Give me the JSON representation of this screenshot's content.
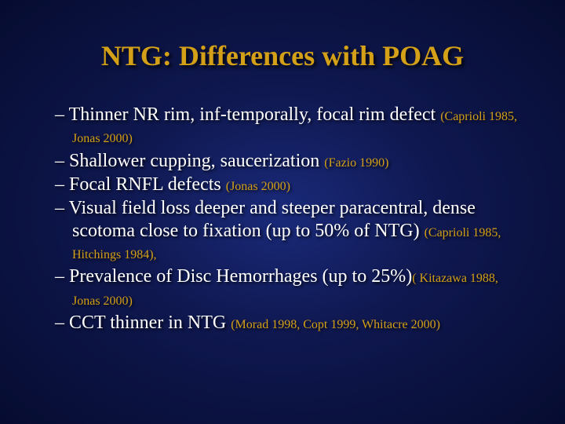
{
  "colors": {
    "title_color": "#d4a017",
    "text_color": "#ffffff",
    "cite_color": "#d4a017",
    "bg_inner": "#1a2a7a",
    "bg_mid": "#0f1850",
    "bg_outer": "#060c30"
  },
  "typography": {
    "title_fontsize": 36,
    "body_fontsize": 24,
    "cite_fontsize": 16,
    "font_family": "Times New Roman"
  },
  "title": "NTG: Differences with POAG",
  "bullets": [
    {
      "text": "Thinner NR rim, inf-temporally, focal rim defect ",
      "cite": "(Caprioli 1985, Jonas 2000)"
    },
    {
      "text": "Shallower cupping, saucerization ",
      "cite": "(Fazio 1990)"
    },
    {
      "text": "Focal RNFL defects ",
      "cite": "(Jonas 2000)"
    },
    {
      "text": "Visual field loss deeper and steeper paracentral, dense scotoma close to fixation (up to 50% of NTG) ",
      "cite": "(Caprioli 1985, Hitchings 1984),"
    },
    {
      "text": "Prevalence of Disc Hemorrhages (up to 25%)",
      "cite": "( Kitazawa 1988, Jonas 2000)"
    },
    {
      "text": "CCT thinner in NTG ",
      "cite": "(Morad 1998, Copt 1999, Whitacre 2000)"
    }
  ]
}
